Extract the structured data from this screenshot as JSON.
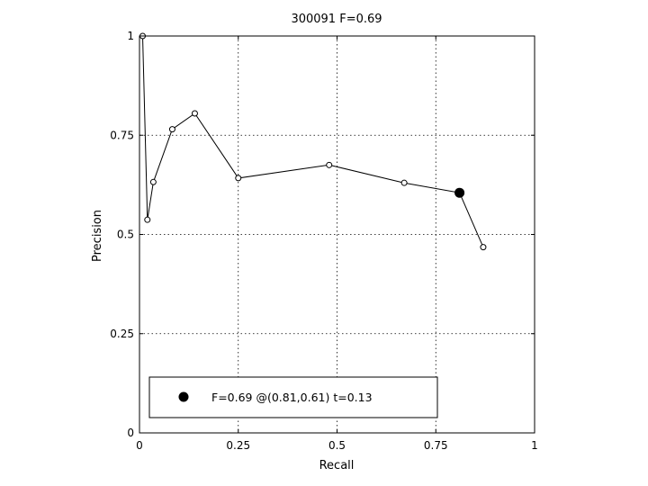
{
  "chart_data": {
    "type": "line",
    "title": "300091 F=0.69",
    "xlabel": "Recall",
    "ylabel": "Precision",
    "xlim": [
      0,
      1
    ],
    "ylim": [
      0,
      1
    ],
    "xticks": [
      0,
      0.25,
      0.5,
      0.75,
      1
    ],
    "xtick_labels": [
      "0",
      "0.25",
      "0.5",
      "0.75",
      "1"
    ],
    "yticks": [
      0,
      0.25,
      0.5,
      0.75,
      1
    ],
    "ytick_labels": [
      "0",
      "0.25",
      "0.5",
      "0.75",
      "1"
    ],
    "grid": true,
    "series": [
      {
        "x": [
          0.008,
          0.02,
          0.035,
          0.083,
          0.14,
          0.25,
          0.48,
          0.67,
          0.81,
          0.87
        ],
        "y": [
          1.0,
          0.537,
          0.632,
          0.765,
          0.805,
          0.642,
          0.675,
          0.63,
          0.605,
          0.468
        ],
        "marker": "open-circle",
        "color": "#000000"
      }
    ],
    "highlight_point": {
      "x": 0.81,
      "y": 0.605,
      "marker": "filled-circle",
      "color": "#000000"
    },
    "legend": {
      "text": "F=0.69 @(0.81,0.61) t=0.13",
      "placement": "bottom-left"
    }
  }
}
